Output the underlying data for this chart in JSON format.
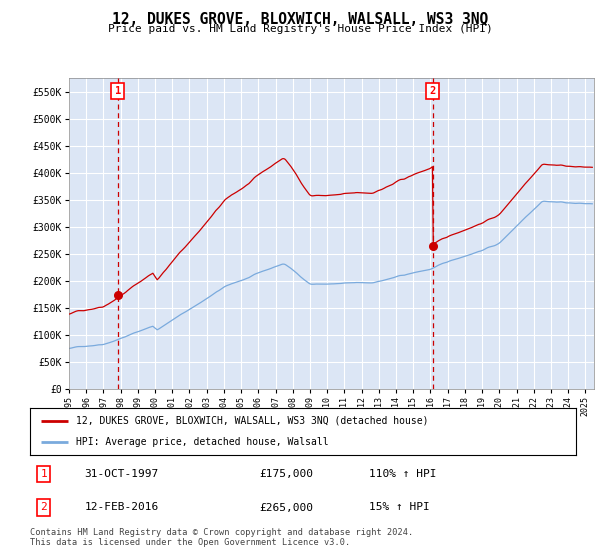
{
  "title": "12, DUKES GROVE, BLOXWICH, WALSALL, WS3 3NQ",
  "subtitle": "Price paid vs. HM Land Registry's House Price Index (HPI)",
  "ylim": [
    0,
    575000
  ],
  "xlim_start": 1995.0,
  "xlim_end": 2025.5,
  "yticks": [
    0,
    50000,
    100000,
    150000,
    200000,
    250000,
    300000,
    350000,
    400000,
    450000,
    500000,
    550000
  ],
  "ytick_labels": [
    "£0",
    "£50K",
    "£100K",
    "£150K",
    "£200K",
    "£250K",
    "£300K",
    "£350K",
    "£400K",
    "£450K",
    "£500K",
    "£550K"
  ],
  "xtick_years": [
    1995,
    1996,
    1997,
    1998,
    1999,
    2000,
    2001,
    2002,
    2003,
    2004,
    2005,
    2006,
    2007,
    2008,
    2009,
    2010,
    2011,
    2012,
    2013,
    2014,
    2015,
    2016,
    2017,
    2018,
    2019,
    2020,
    2021,
    2022,
    2023,
    2024,
    2025
  ],
  "background_color": "#dce6f5",
  "grid_color": "#ffffff",
  "sale1_date": 1997.83,
  "sale1_price": 175000,
  "sale1_label": "1",
  "sale2_date": 2016.12,
  "sale2_price": 265000,
  "sale2_label": "2",
  "legend_line1": "12, DUKES GROVE, BLOXWICH, WALSALL, WS3 3NQ (detached house)",
  "legend_line2": "HPI: Average price, detached house, Walsall",
  "table_row1": [
    "1",
    "31-OCT-1997",
    "£175,000",
    "110% ↑ HPI"
  ],
  "table_row2": [
    "2",
    "12-FEB-2016",
    "£265,000",
    "15% ↑ HPI"
  ],
  "footer": "Contains HM Land Registry data © Crown copyright and database right 2024.\nThis data is licensed under the Open Government Licence v3.0.",
  "hpi_line_color": "#7aaadd",
  "sale_line_color": "#cc0000",
  "vline_color": "#cc0000",
  "noise_seed": 42
}
